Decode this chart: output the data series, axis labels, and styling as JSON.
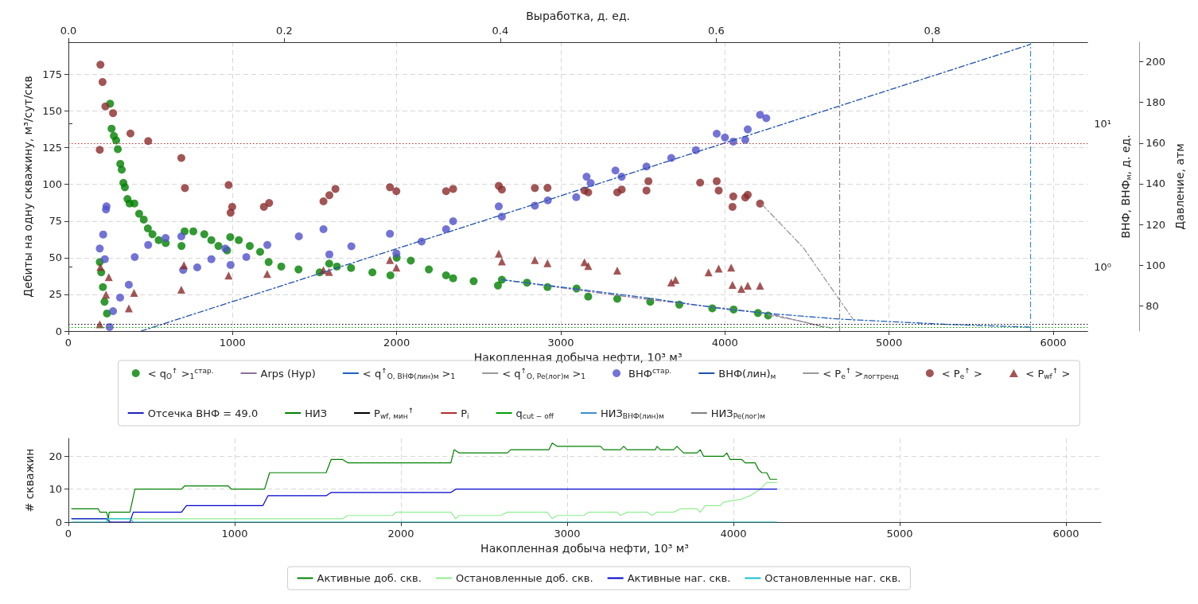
{
  "chart_data": [
    {
      "type": "scatter",
      "xlabel": "Накопленная добыча нефти, 10³ м³",
      "x2label": "Выработка, д. ед.",
      "ylabel": "Дебиты на одну скважину, м³/сут/скв",
      "y2label": "ВНФ, ВНФ$_{м}$, д. ед.",
      "y3label": "Давление, атм",
      "xlim": [
        0,
        6210
      ],
      "xticks": [
        0,
        1000,
        2000,
        3000,
        4000,
        5000,
        6000
      ],
      "x2lim": [
        0,
        0.944
      ],
      "x2ticks": [
        {
          "value": 0,
          "label": "0.0"
        },
        0.2,
        0.4,
        0.6,
        0.8
      ],
      "ylim": [
        0,
        197
      ],
      "yticks": [
        0,
        25,
        50,
        75,
        100,
        125,
        150,
        175
      ],
      "y2lim": [
        0.356,
        37
      ],
      "y2ticks": [
        {
          "value": 1,
          "label": "10⁰"
        },
        {
          "value": 10,
          "label": "10¹"
        }
      ],
      "y3lim": [
        67.7,
        209.6
      ],
      "y3ticks": [
        80,
        100,
        120,
        140,
        160,
        180,
        200
      ],
      "log": "y2",
      "grid": true,
      "legend": "bottom",
      "series": [
        {
          "name": "< q$_{O}$$^{↑}$ >$_{1}$$^{стар.}$",
          "marker": "circle",
          "color": "#008000",
          "axis": "y",
          "x": [
            191,
            200,
            210,
            220,
            235,
            254,
            263,
            277,
            291,
            301,
            316,
            325,
            335,
            344,
            360,
            373,
            402,
            431,
            459,
            484,
            512,
            550,
            593,
            689,
            708,
            761,
            828,
            871,
            914,
            967,
            986,
            1038,
            1105,
            1168,
            1220,
            1297,
            1402,
            1531,
            1589,
            1636,
            1722,
            1852,
            1962,
            2000,
            2086,
            2196,
            2301,
            2344,
            2469,
            2617,
            2641,
            2794,
            2919,
            3096,
            3167,
            3344,
            3545,
            3722,
            3923,
            4053,
            4201,
            4263
          ],
          "values": [
            47,
            40,
            30,
            20,
            12,
            155,
            138,
            133,
            130,
            124,
            114,
            110,
            101,
            98,
            90,
            87,
            87,
            80,
            76,
            70,
            66,
            62,
            60,
            58,
            68,
            68,
            66,
            62,
            58,
            55,
            64,
            62,
            58,
            54,
            47,
            44,
            42,
            40,
            46,
            44,
            43,
            40,
            38,
            50,
            48,
            42,
            38,
            36,
            34,
            31,
            35,
            33,
            30,
            29,
            23.5,
            22,
            20,
            18,
            15.5,
            14.7,
            12.3,
            10.6
          ]
        },
        {
          "name": "Arps (Hyp)",
          "type": "line",
          "marker": "none",
          "line_style": "dashed",
          "color": "#8c6d9c",
          "axis": "y",
          "x": [
            2641,
            3500,
            4263,
            4450,
            4600
          ],
          "values": [
            35,
            22,
            12,
            7,
            2.7
          ]
        },
        {
          "name": "< q$^{↑}$$_{O, ВНФ(лин)м}$ >$_{1}$",
          "type": "line",
          "marker": "none",
          "line_style": "dashed",
          "color": "#1f5fbf",
          "axis": "y",
          "x": [
            2641,
            3000,
            3500,
            4000,
            4263,
            4694,
            5359,
            5852
          ],
          "values": [
            35,
            30,
            23,
            15,
            12,
            8.2,
            4.5,
            2.7
          ]
        },
        {
          "name": "< q$^{↑}$$_{O, Pe(лог)м}$ >$_{1}$",
          "type": "line",
          "marker": "none",
          "line_style": "dashed",
          "color": "#999999",
          "axis": "y",
          "x": [
            4263,
            4450,
            4650
          ],
          "values": [
            11,
            7,
            2
          ]
        },
        {
          "name": "ВНФ$^{стар.}$",
          "marker": "circle",
          "color": "#5050cc",
          "axis": "y2",
          "x": [
            191,
            212,
            222,
            229,
            232,
            251,
            272,
            315,
            368,
            404,
            486,
            592,
            688,
            699,
            785,
            871,
            956,
            988,
            1084,
            1212,
            1404,
            1554,
            1590,
            1724,
            1959,
            1998,
            2152,
            2301,
            2344,
            2622,
            2641,
            2842,
            2921,
            3094,
            3157,
            3182,
            3333,
            3371,
            3522,
            3673,
            3823,
            3950,
            4000,
            4051,
            4124,
            4139,
            4214,
            4252
          ],
          "values": [
            1.34,
            1.68,
            1.13,
            2.51,
            2.64,
            0.38,
            0.49,
            0.61,
            0.75,
            1.17,
            1.42,
            1.59,
            1.63,
            0.95,
            0.99,
            1.13,
            1.34,
            1.03,
            1.17,
            1.42,
            1.63,
            1.83,
            1.22,
            1.39,
            1.7,
            1.24,
            1.5,
            1.83,
            2.08,
            2.64,
            2.24,
            2.67,
            2.91,
            3.06,
            4.25,
            3.84,
            4.7,
            4.25,
            5.01,
            5.75,
            6.52,
            8.49,
            7.98,
            7.48,
            7.7,
            9.1,
            11.5,
            10.9
          ]
        },
        {
          "name": "ВНФ(лин)$_{м}$",
          "type": "line",
          "marker": "none",
          "line_style": "dashed",
          "color": "#2050a8",
          "axis": "y2",
          "x": [
            443,
            5860
          ],
          "values": [
            0.356,
            35.6
          ]
        },
        {
          "name": "< P$_{e}$$^{↑}$ >$_{логтренд}$",
          "type": "line",
          "marker": "none",
          "line_style": "dashed",
          "color": "#999999",
          "axis": "y3",
          "x": [
            4227,
            4478,
            4694,
            4794
          ],
          "values": [
            129.8,
            108.6,
            83.5,
            72
          ]
        },
        {
          "name": "< P$_{e}$$^{↑}$ >",
          "marker": "circle",
          "color": "#8b2a2a",
          "axis": "y3",
          "x": [
            191,
            195,
            208,
            225,
            272,
            378,
            486,
            688,
            710,
            976,
            988,
            998,
            1191,
            1223,
            1554,
            1590,
            1627,
            1959,
            1998,
            2301,
            2344,
            2622,
            2641,
            2842,
            2919,
            3144,
            3167,
            3344,
            3371,
            3522,
            3534,
            3849,
            3950,
            3962,
            4046,
            4051,
            4124,
            4139,
            4214
          ],
          "values": [
            156.7,
            198.5,
            190,
            178,
            174.7,
            164.7,
            161,
            152.7,
            137.9,
            139.4,
            125.8,
            128.7,
            128.7,
            130.6,
            131.4,
            134.4,
            137.5,
            138.3,
            136.4,
            136.4,
            137.5,
            139,
            137.2,
            137.9,
            138,
            136.7,
            135.8,
            135.8,
            137.2,
            136.7,
            141.3,
            140.6,
            141.3,
            136.7,
            128.7,
            133.8,
            133.3,
            134.6,
            130.3
          ]
        },
        {
          "name": "< P$_{wf}$$^{↑}$ >",
          "marker": "triangle",
          "color": "#8b2a2a",
          "axis": "y3",
          "x": [
            191,
            195,
            229,
            246,
            368,
            400,
            688,
            704,
            976,
            1211,
            1554,
            1588,
            1959,
            1998,
            2622,
            2641,
            2842,
            2919,
            3144,
            3167,
            3344,
            3673,
            3699,
            3900,
            3962,
            4038,
            4046,
            4100,
            4139,
            4214
          ],
          "values": [
            71,
            99.2,
            85.6,
            94.2,
            78.8,
            86.5,
            88,
            100,
            95,
            95.7,
            97.6,
            96.7,
            102.6,
            98.9,
            105.7,
            101.9,
            102.6,
            101,
            101.5,
            99.6,
            97.4,
            91.5,
            92.8,
            96.5,
            98.4,
            98.9,
            90.4,
            88.4,
            90,
            90
          ]
        },
        {
          "name": "Отсечка ВНФ = 49.0",
          "type": "line",
          "marker": "none",
          "line_style": "dotted",
          "color": "#2020c0",
          "axis": "y2"
        },
        {
          "name": "НИЗ",
          "type": "line",
          "marker": "none",
          "line_style": "dotted",
          "color": "#008000",
          "axis": "y"
        }
      ],
      "ref_lines": [
        {
          "axis": "y3",
          "value": 71,
          "label": "P$_{wf, мин}$$^{↑}$",
          "color": "#000000",
          "line_style": "dotted"
        },
        {
          "axis": "y3",
          "value": 160,
          "label": "P$_{i}$",
          "color": "#b03030",
          "line_style": "dotted"
        },
        {
          "axis": "y",
          "value": 2.7,
          "label": "q$_{cut − off}$",
          "color": "#00a000",
          "line_style": "dotted"
        },
        {
          "axis": "x",
          "value": 5860,
          "label": "НИЗ$_{ВНФ(лин)м}$",
          "color": "#3a8fd0",
          "line_style": "dashed"
        },
        {
          "axis": "x",
          "value": 4700,
          "label": "НИЗ$_{Pe(лог)м}$",
          "color": "#808080",
          "line_style": "dashed"
        }
      ]
    },
    {
      "type": "line",
      "xlabel": "Накопленная добыча нефти, 10³ м³",
      "ylabel": "# скважин",
      "xlim": [
        0,
        6210
      ],
      "xticks": [
        0,
        1000,
        2000,
        3000,
        4000,
        5000,
        6000
      ],
      "ylim": [
        0,
        25.4
      ],
      "yticks": [
        0,
        10,
        20
      ],
      "grid": true,
      "legend": "bottom",
      "line_style": "solid",
      "marker": "none",
      "series": [
        {
          "name": "Активные доб. скв.",
          "color": "#008000",
          "x": [
            20,
            180,
            190,
            230,
            240,
            245,
            370,
            400,
            680,
            700,
            960,
            980,
            1180,
            1210,
            1550,
            1580,
            1650,
            1680,
            2300,
            2320,
            2350,
            2640,
            2660,
            2890,
            2910,
            2940,
            3200,
            3220,
            3320,
            3340,
            3360,
            3530,
            3540,
            3560,
            3640,
            3660,
            3680,
            3700,
            3780,
            3800,
            3820,
            3940,
            3960,
            3980,
            4050,
            4070,
            4130,
            4150,
            4170,
            4200,
            4220,
            4260
          ],
          "values": [
            4,
            4,
            3,
            3,
            1,
            3,
            3,
            10,
            10,
            11,
            11,
            10,
            10,
            15,
            15,
            19,
            19,
            18,
            18,
            22,
            21,
            21,
            22,
            22,
            24,
            23,
            23,
            22,
            22,
            23,
            22,
            22,
            23,
            22,
            22,
            23,
            22,
            21,
            21,
            22,
            20,
            20,
            21,
            19,
            19,
            18,
            18,
            16,
            15,
            15,
            13,
            13
          ]
        },
        {
          "name": "Остановленные доб. скв.",
          "color": "#90ee90",
          "x": [
            20,
            230,
            240,
            250,
            1650,
            1680,
            1950,
            1970,
            2300,
            2330,
            2350,
            2600,
            2640,
            2880,
            2910,
            2940,
            3100,
            3130,
            3300,
            3320,
            3360,
            3480,
            3510,
            3540,
            3640,
            3680,
            3780,
            3800,
            3830,
            3920,
            3940,
            4050,
            4100,
            4160,
            4200,
            4260
          ],
          "values": [
            1,
            1,
            0,
            1,
            1,
            2,
            2,
            3,
            3,
            1,
            2,
            2,
            3,
            3,
            1,
            2,
            2,
            3,
            3,
            2,
            3,
            3,
            2,
            3,
            3,
            4,
            4,
            3,
            5,
            5,
            6,
            7,
            8,
            10,
            12,
            12
          ]
        },
        {
          "name": "Активные наг. скв.",
          "color": "#0000cd",
          "x": [
            20,
            230,
            250,
            370,
            390,
            680,
            710,
            1170,
            1200,
            1550,
            1580,
            2300,
            2330,
            4260
          ],
          "values": [
            1,
            1,
            0,
            0,
            3,
            3,
            5,
            5,
            8,
            8,
            9,
            9,
            10,
            10
          ]
        },
        {
          "name": "Остановленные наг. скв.",
          "color": "#17becf",
          "x": [
            20,
            230,
            240,
            370,
            390,
            4260
          ],
          "values": [
            0,
            0,
            1,
            1,
            0,
            0
          ]
        }
      ]
    }
  ]
}
